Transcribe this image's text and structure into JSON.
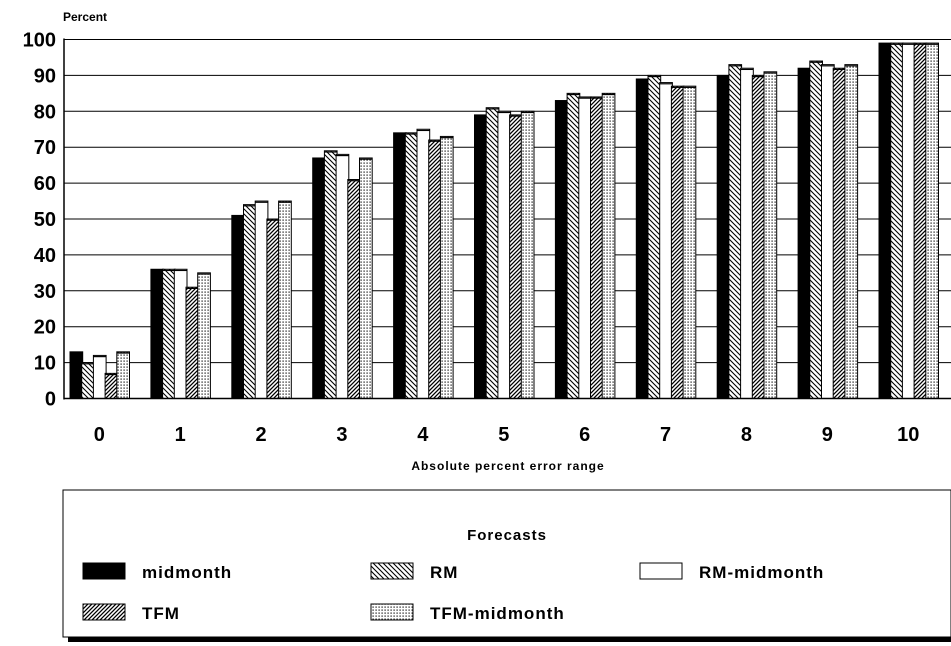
{
  "chart_data": {
    "type": "bar",
    "title": "",
    "ylabel": "Percent",
    "xlabel": "Absolute percent error range",
    "ylim": [
      0,
      100
    ],
    "yticks": [
      0,
      10,
      20,
      30,
      40,
      50,
      60,
      70,
      80,
      90,
      100
    ],
    "grid": "horizontal",
    "categories": [
      "0",
      "1",
      "2",
      "3",
      "4",
      "5",
      "6",
      "7",
      "8",
      "9",
      "10"
    ],
    "legend": {
      "title": "Forecasts",
      "placement": "bottom"
    },
    "series": [
      {
        "name": "midmonth",
        "pattern": "solid-black",
        "values": [
          13,
          36,
          51,
          67,
          74,
          79,
          83,
          89,
          90,
          92,
          99
        ]
      },
      {
        "name": "RM",
        "pattern": "backslash-hatch",
        "values": [
          10,
          36,
          54,
          69,
          74,
          81,
          85,
          90,
          93,
          94,
          99
        ]
      },
      {
        "name": "RM-midmonth",
        "pattern": "white",
        "values": [
          12,
          36,
          55,
          68,
          75,
          80,
          84,
          88,
          92,
          93,
          99
        ]
      },
      {
        "name": "TFM",
        "pattern": "slash-hatch",
        "values": [
          7,
          31,
          50,
          61,
          72,
          79,
          84,
          87,
          90,
          92,
          99
        ]
      },
      {
        "name": "TFM-midmonth",
        "pattern": "dotted",
        "values": [
          13,
          35,
          55,
          67,
          73,
          80,
          85,
          87,
          91,
          93,
          99
        ]
      }
    ]
  }
}
